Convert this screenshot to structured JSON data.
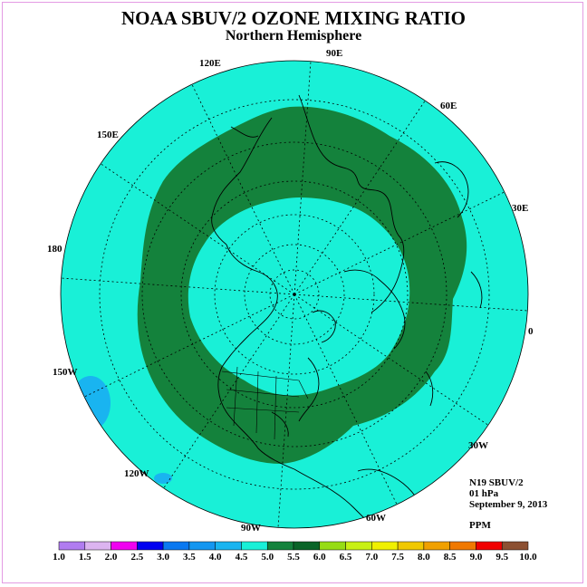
{
  "title": "NOAA SBUV/2 OZONE MIXING RATIO",
  "subtitle": "Northern Hemisphere",
  "info": {
    "instrument": "N19 SBUV/2",
    "level": "01 hPa",
    "date": "September 9, 2013",
    "units": "PPM"
  },
  "longitude_labels": [
    "90E",
    "60E",
    "30E",
    "0",
    "30W",
    "60W",
    "90W",
    "120W",
    "150W",
    "180",
    "150E",
    "120E"
  ],
  "colorbar": {
    "ticks": [
      "1.0",
      "1.5",
      "2.0",
      "2.5",
      "3.0",
      "3.5",
      "4.0",
      "4.5",
      "5.0",
      "5.5",
      "6.0",
      "6.5",
      "7.0",
      "7.5",
      "8.0",
      "8.5",
      "9.0",
      "9.5",
      "10.0"
    ],
    "colors": [
      "#b07cf0",
      "#dcb4f0",
      "#f000f0",
      "#0000f0",
      "#0a78f0",
      "#1496f0",
      "#19b4f0",
      "#19f0d7",
      "#14823c",
      "#0a6428",
      "#96dc14",
      "#c8f014",
      "#f0f000",
      "#f0c800",
      "#f0a000",
      "#f07800",
      "#f00000",
      "#8c5032"
    ]
  },
  "chart_data": {
    "type": "heatmap",
    "title": "NOAA SBUV/2 OZONE MIXING RATIO",
    "subtitle": "Northern Hemisphere",
    "projection": "polar stereographic",
    "units": "PPM",
    "pressure_level": "01 hPa",
    "date": "September 9, 2013",
    "levels": [
      1.0,
      1.5,
      2.0,
      2.5,
      3.0,
      3.5,
      4.0,
      4.5,
      5.0,
      5.5,
      6.0,
      6.5,
      7.0,
      7.5,
      8.0,
      8.5,
      9.0,
      9.5,
      10.0
    ],
    "regions": [
      {
        "name": "background",
        "range": [
          4.5,
          5.0
        ],
        "color": "#19f0d7"
      },
      {
        "name": "mid-latitude ring",
        "range": [
          5.0,
          5.5
        ],
        "color": "#14823c"
      },
      {
        "name": "pole interior",
        "range": [
          4.5,
          5.0
        ],
        "color": "#19f0d7"
      },
      {
        "name": "low-latitude pockets",
        "range": [
          4.0,
          4.5
        ],
        "color": "#19b4f0"
      }
    ]
  }
}
